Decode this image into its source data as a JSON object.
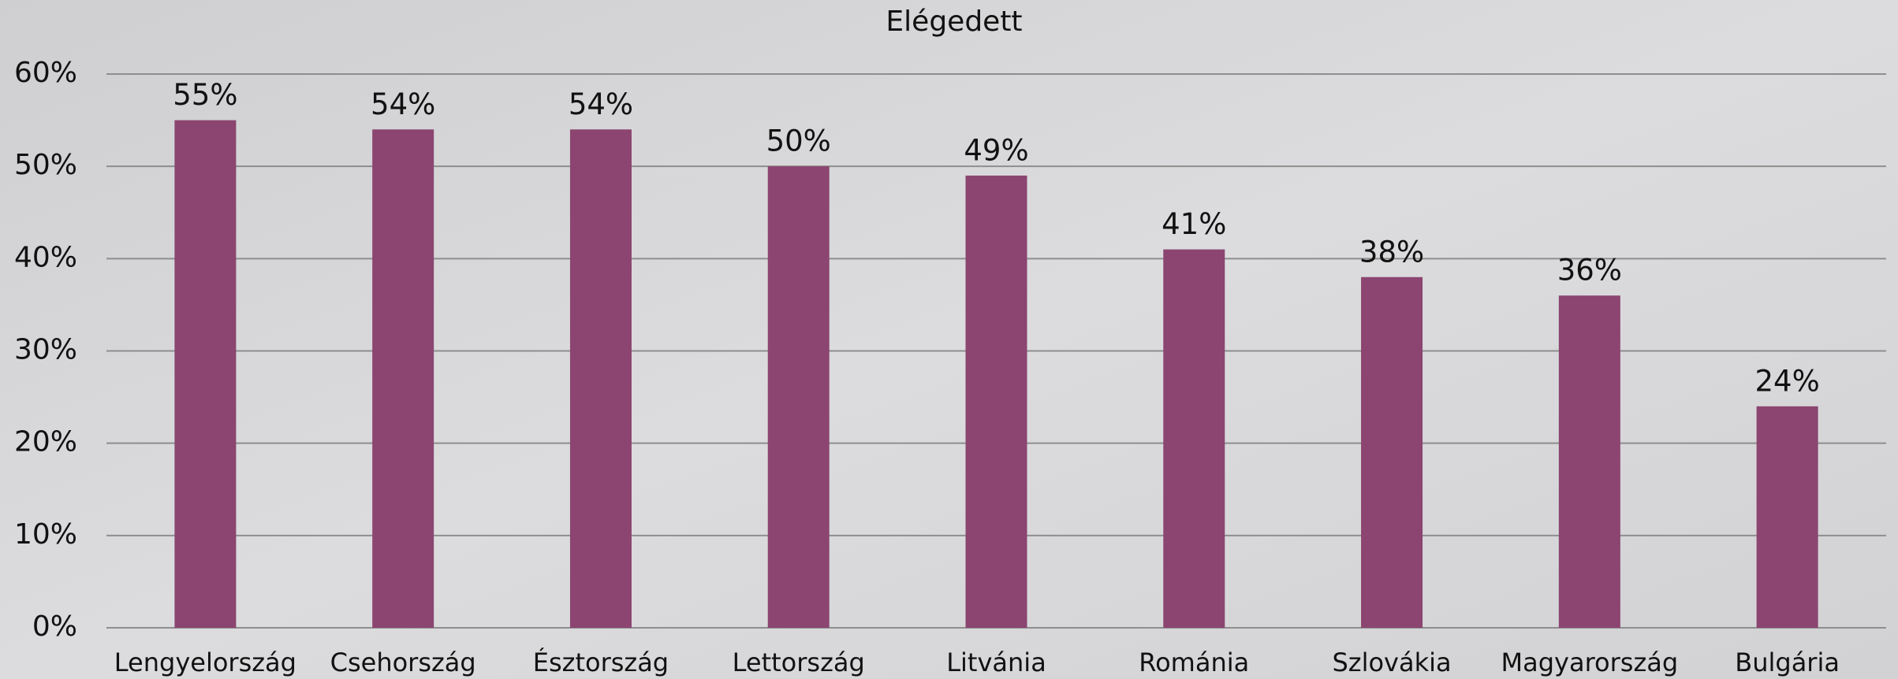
{
  "chart_data": {
    "type": "bar",
    "title": "Elégedett",
    "categories": [
      "Lengyelország",
      "Csehország",
      "Észtország",
      "Lettország",
      "Litvánia",
      "Románia",
      "Szlovákia",
      "Magyarország",
      "Bulgária"
    ],
    "values": [
      55,
      54,
      54,
      50,
      49,
      41,
      38,
      36,
      24
    ],
    "value_labels": [
      "55%",
      "54%",
      "54%",
      "50%",
      "49%",
      "41%",
      "38%",
      "36%",
      "24%"
    ],
    "color": "#8b4570",
    "ylim": [
      0,
      60
    ],
    "yticks": [
      {
        "value": 0,
        "label": "0%"
      },
      {
        "value": 10,
        "label": "10%"
      },
      {
        "value": 20,
        "label": "20%"
      },
      {
        "value": 30,
        "label": "30%"
      },
      {
        "value": 40,
        "label": "40%"
      },
      {
        "value": 50,
        "label": "50%"
      },
      {
        "value": 60,
        "label": "60%"
      }
    ],
    "grid": true
  }
}
